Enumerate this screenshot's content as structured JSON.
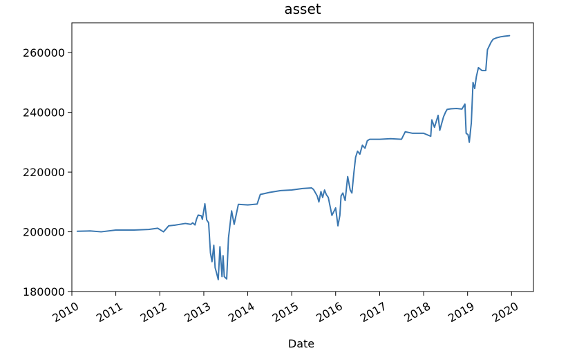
{
  "chart_data": {
    "type": "line",
    "title": "asset",
    "xlabel": "Date",
    "ylabel": "",
    "x_ticks": [
      "2010",
      "2011",
      "2012",
      "2013",
      "2014",
      "2015",
      "2016",
      "2017",
      "2018",
      "2019",
      "2020"
    ],
    "y_ticks": [
      180000,
      200000,
      220000,
      240000,
      260000
    ],
    "xlim": [
      "2010-01-01",
      "2020-07-01"
    ],
    "ylim": [
      180000,
      270000
    ],
    "grid": false,
    "color": "#3a77b0",
    "series": [
      {
        "x": [
          "2010-02-15",
          "2010-06-01",
          "2010-09-01",
          "2011-01-01",
          "2011-06-01",
          "2011-10-01",
          "2011-12-15",
          "2012-02-01",
          "2012-03-15",
          "2012-05-01",
          "2012-08-01",
          "2012-09-15",
          "2012-10-01",
          "2012-10-20",
          "2012-11-01",
          "2012-11-15",
          "2012-12-10",
          "2012-12-20",
          "2013-01-10",
          "2013-01-25",
          "2013-02-10",
          "2013-02-25",
          "2013-03-10",
          "2013-03-25",
          "2013-04-05",
          "2013-04-15",
          "2013-05-01",
          "2013-05-15",
          "2013-06-01",
          "2013-06-10",
          "2013-06-20",
          "2013-07-10",
          "2013-07-25",
          "2013-08-20",
          "2013-09-10",
          "2013-10-15",
          "2014-01-01",
          "2014-03-20",
          "2014-04-15",
          "2014-07-01",
          "2014-10-01",
          "2015-01-01",
          "2015-04-01",
          "2015-06-15",
          "2015-07-01",
          "2015-08-01",
          "2015-08-15",
          "2015-09-01",
          "2015-09-15",
          "2015-10-01",
          "2015-10-15",
          "2015-11-01",
          "2015-12-01",
          "2016-01-01",
          "2016-01-20",
          "2016-02-05",
          "2016-02-15",
          "2016-03-01",
          "2016-03-20",
          "2016-04-10",
          "2016-05-01",
          "2016-05-15",
          "2016-06-01",
          "2016-06-15",
          "2016-07-01",
          "2016-07-20",
          "2016-08-10",
          "2016-09-01",
          "2016-09-20",
          "2016-10-10",
          "2016-11-01",
          "2017-01-01",
          "2017-04-01",
          "2017-07-01",
          "2017-08-01",
          "2017-10-01",
          "2018-01-01",
          "2018-03-01",
          "2018-03-10",
          "2018-04-01",
          "2018-05-01",
          "2018-05-15",
          "2018-06-15",
          "2018-07-01",
          "2018-07-15",
          "2018-08-15",
          "2018-10-01",
          "2018-11-15",
          "2018-12-10",
          "2018-12-20",
          "2019-01-05",
          "2019-01-15",
          "2019-02-01",
          "2019-02-15",
          "2019-03-01",
          "2019-03-15",
          "2019-04-01",
          "2019-04-15",
          "2019-05-01",
          "2019-06-01",
          "2019-06-15",
          "2019-07-15",
          "2019-08-01",
          "2019-09-01",
          "2019-10-01",
          "2019-11-01",
          "2019-12-15"
        ],
        "y": [
          200200,
          200300,
          200000,
          200600,
          200600,
          200800,
          201200,
          200000,
          202000,
          202200,
          202800,
          202500,
          203000,
          202300,
          204200,
          205600,
          205400,
          204200,
          209400,
          204000,
          203000,
          193000,
          190000,
          195500,
          188000,
          186500,
          184000,
          195000,
          185000,
          192000,
          185000,
          184200,
          198000,
          207000,
          202500,
          209200,
          209000,
          209300,
          212500,
          213200,
          213800,
          214000,
          214500,
          214700,
          214200,
          212000,
          210000,
          213500,
          211500,
          214000,
          212500,
          211500,
          205500,
          208000,
          202000,
          205500,
          212000,
          213000,
          210500,
          218500,
          214000,
          213000,
          220000,
          225000,
          227000,
          226000,
          229000,
          228000,
          230500,
          231000,
          231000,
          231000,
          231200,
          231000,
          233500,
          233000,
          233000,
          232000,
          237500,
          235000,
          239000,
          234000,
          238500,
          240000,
          241000,
          241200,
          241300,
          241100,
          242800,
          233000,
          232500,
          230000,
          236500,
          250000,
          248000,
          252000,
          255000,
          254500,
          254000,
          254000,
          261000,
          263500,
          264500,
          265000,
          265300,
          265500,
          265700
        ]
      }
    ]
  }
}
